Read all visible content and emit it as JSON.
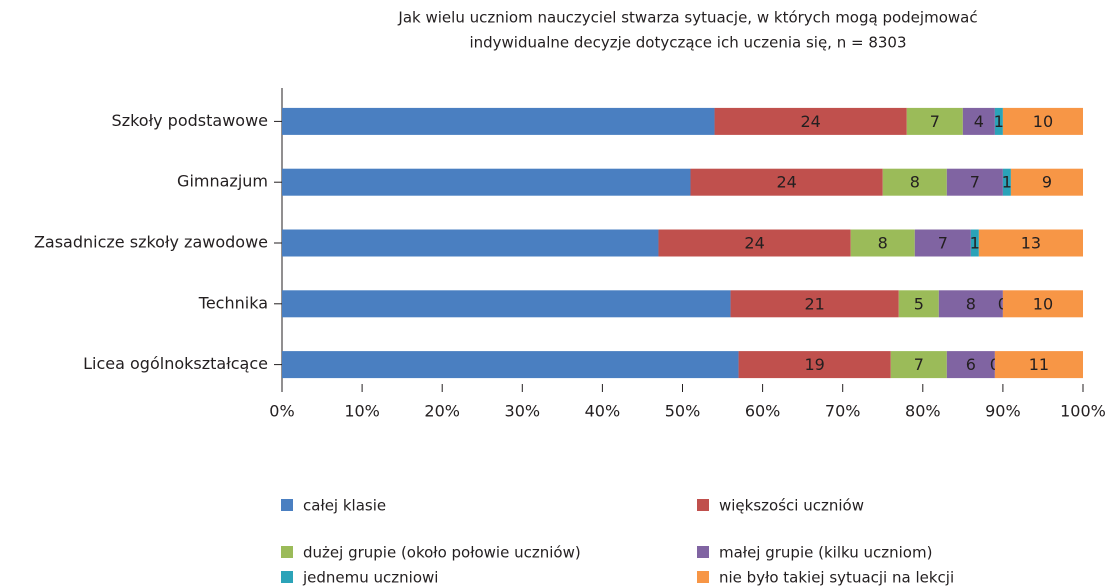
{
  "chart_data": {
    "type": "stacked_barh",
    "title": [
      "Jak wielu uczniom nauczyciel stwarza sytuacje, w których mogą podejmować",
      "indywidualne decyzje dotyczące ich uczenia się, n = 8303"
    ],
    "categories": [
      "Szkoły podstawowe",
      "Gimnazjum",
      "Zasadnicze szkoły zawodowe",
      "Technika",
      "Licea ogólnokształcące"
    ],
    "series": [
      {
        "name": "całej klasie",
        "color": "#4a7fc1",
        "values": [
          54,
          51,
          47,
          56,
          57
        ],
        "data_labels": false
      },
      {
        "name": "większości uczniów",
        "color": "#c0504d",
        "values": [
          24,
          24,
          24,
          21,
          19
        ]
      },
      {
        "name": "dużej grupie (około połowie uczniów)",
        "color": "#9bbb59",
        "values": [
          7,
          8,
          8,
          5,
          7
        ]
      },
      {
        "name": "małej grupie (kilku uczniom)",
        "color": "#8064a2",
        "values": [
          4,
          7,
          7,
          8,
          6
        ]
      },
      {
        "name": "jednemu uczniowi",
        "color": "#2ba3b8",
        "values": [
          1,
          1,
          1,
          0,
          0
        ]
      },
      {
        "name": "nie było takiej sytuacji na lekcji",
        "color": "#f79646",
        "values": [
          10,
          9,
          13,
          10,
          11
        ]
      }
    ],
    "xlim": [
      0,
      100
    ],
    "xticks": [
      {
        "value": 0,
        "label": "0%"
      },
      {
        "value": 10,
        "label": "10%"
      },
      {
        "value": 20,
        "label": "20%"
      },
      {
        "value": 30,
        "label": "30%"
      },
      {
        "value": 40,
        "label": "40%"
      },
      {
        "value": 50,
        "label": "50%"
      },
      {
        "value": 60,
        "label": "60%"
      },
      {
        "value": 70,
        "label": "70%"
      },
      {
        "value": 80,
        "label": "80%"
      },
      {
        "value": 90,
        "label": "90%"
      },
      {
        "value": 100,
        "label": "100%"
      }
    ]
  }
}
